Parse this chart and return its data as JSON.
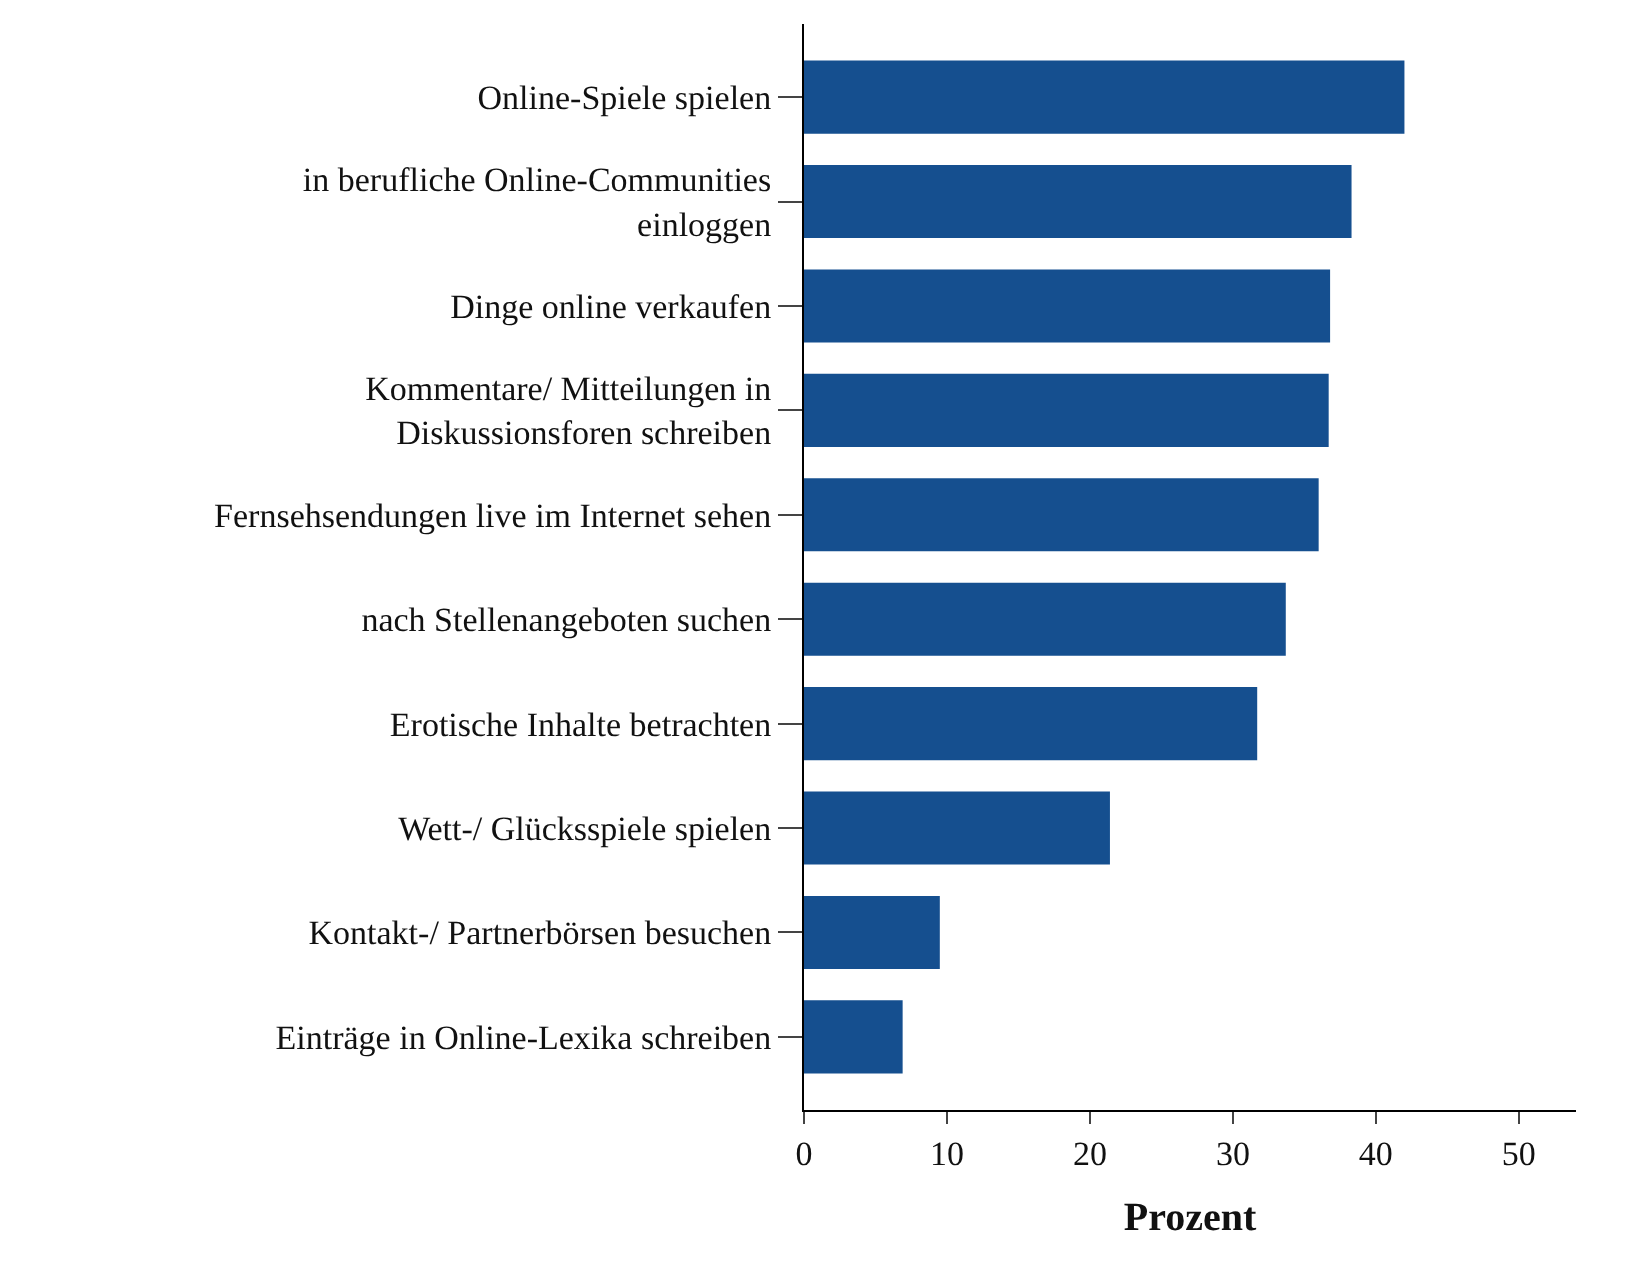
{
  "chart_data": {
    "type": "bar",
    "orientation": "horizontal",
    "xlabel": "Prozent",
    "categories": [
      "Online-Spiele spielen",
      "in berufliche Online-Communities\neinloggen",
      "Dinge online verkaufen",
      "Kommentare/ Mitteilungen in\nDiskussionsforen schreiben",
      "Fernsehsendungen live im Internet sehen",
      "nach Stellenangeboten suchen",
      "Erotische Inhalte betrachten",
      "Wett-/ Glücksspiele spielen",
      "Kontakt-/ Partnerbörsen besuchen",
      "Einträge in Online-Lexika schreiben"
    ],
    "values": [
      42.0,
      38.3,
      36.8,
      36.7,
      36.0,
      33.7,
      31.7,
      21.4,
      9.5,
      6.9
    ],
    "color": "#154f8f",
    "xlim": [
      0,
      54
    ],
    "xticks": [
      0,
      10,
      20,
      30,
      40,
      50
    ],
    "legend": false
  }
}
